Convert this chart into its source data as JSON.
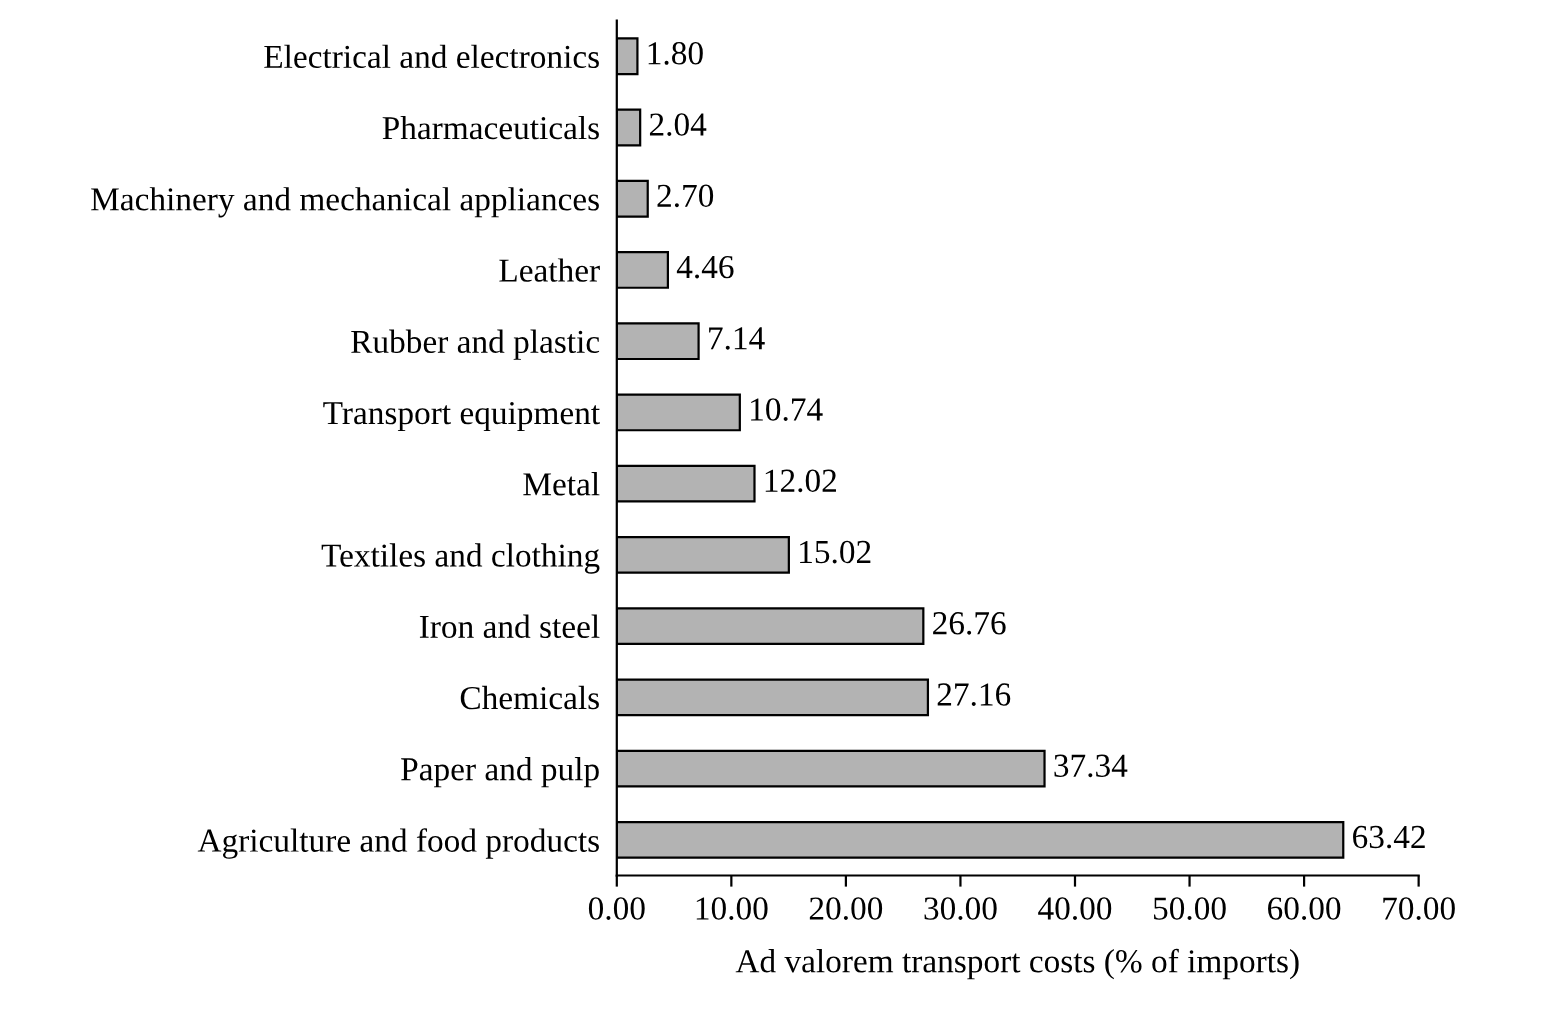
{
  "chart_data": {
    "type": "bar",
    "orientation": "horizontal",
    "xlabel": "Ad valorem transport costs (% of imports)",
    "categories": [
      "Electrical and electronics",
      "Pharmaceuticals",
      "Machinery and mechanical appliances",
      "Leather",
      "Rubber and plastic",
      "Transport equipment",
      "Metal",
      "Textiles and clothing",
      "Iron and steel",
      "Chemicals",
      "Paper and pulp",
      "Agriculture and food products"
    ],
    "values": [
      1.8,
      2.04,
      2.7,
      4.46,
      7.14,
      10.74,
      12.02,
      15.02,
      26.76,
      27.16,
      37.34,
      63.42
    ],
    "value_labels": [
      "1.80",
      "2.04",
      "2.70",
      "4.46",
      "7.14",
      "10.74",
      "12.02",
      "15.02",
      "26.76",
      "27.16",
      "37.34",
      "63.42"
    ],
    "color": "#b3b3b3",
    "xlim": [
      0,
      70
    ],
    "xticks": [
      {
        "value": 0,
        "label": "0.00"
      },
      {
        "value": 10,
        "label": "10.00"
      },
      {
        "value": 20,
        "label": "20.00"
      },
      {
        "value": 30,
        "label": "30.00"
      },
      {
        "value": 40,
        "label": "40.00"
      },
      {
        "value": 50,
        "label": "50.00"
      },
      {
        "value": 60,
        "label": "60.00"
      },
      {
        "value": 70,
        "label": "70.00"
      }
    ],
    "grid": false,
    "legend": false
  }
}
